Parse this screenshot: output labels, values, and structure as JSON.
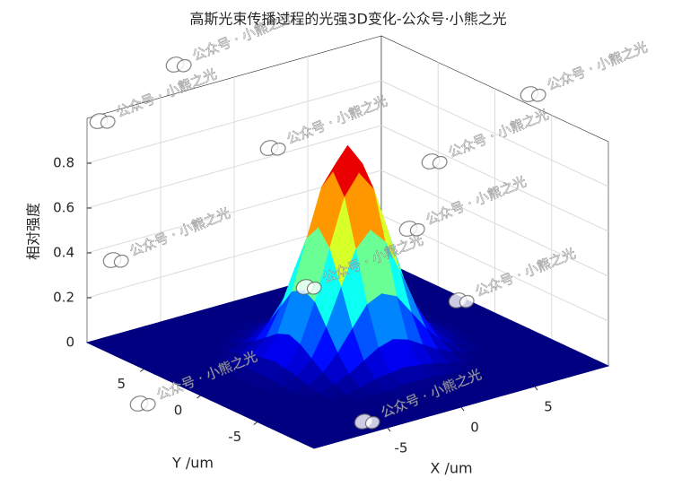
{
  "chart_data": {
    "type": "surface",
    "title": "高斯光束传播过程的光强3D变化-公众号·小熊之光",
    "xlabel": "X /um",
    "ylabel": "Y /um",
    "zlabel": "相对强度",
    "watermark": "公众号 · 小熊之光",
    "colormap": "jet",
    "grid": true,
    "xlim": [
      -10,
      10
    ],
    "ylim": [
      -10,
      10
    ],
    "zlim": [
      0,
      1
    ],
    "xticks": [
      -5,
      0,
      5
    ],
    "yticks": [
      -5,
      0,
      5
    ],
    "zticks": [
      0,
      0.2,
      0.4,
      0.6,
      0.8
    ],
    "x": [
      -10,
      -9,
      -8,
      -7,
      -6,
      -5,
      -4,
      -3,
      -2,
      -1,
      0,
      1,
      2,
      3,
      4,
      5,
      6,
      7,
      8,
      9,
      10
    ],
    "y": [
      -10,
      -9,
      -8,
      -7,
      -6,
      -5,
      -4,
      -3,
      -2,
      -1,
      0,
      1,
      2,
      3,
      4,
      5,
      6,
      7,
      8,
      9,
      10
    ],
    "z": [
      [
        0,
        0,
        0,
        0,
        0,
        0,
        0,
        0,
        0,
        0,
        0,
        0,
        0,
        0,
        0,
        0,
        0,
        0,
        0,
        0,
        0
      ],
      [
        0,
        0,
        0,
        0,
        0,
        0,
        0,
        0,
        0,
        0,
        0,
        0,
        0,
        0,
        0,
        0,
        0,
        0,
        0,
        0,
        0
      ],
      [
        0,
        0,
        0,
        0,
        0,
        0,
        0,
        0,
        0,
        0,
        0,
        0,
        0,
        0,
        0,
        0,
        0,
        0,
        0,
        0,
        0
      ],
      [
        0,
        0,
        0,
        0,
        0,
        0,
        0,
        0,
        0,
        0,
        0,
        0,
        0,
        0,
        0,
        0,
        0,
        0,
        0,
        0,
        0
      ],
      [
        0,
        0,
        0,
        0,
        0,
        0,
        0,
        0.01,
        0.01,
        0.02,
        0.02,
        0.02,
        0.01,
        0.01,
        0,
        0,
        0,
        0,
        0,
        0,
        0
      ],
      [
        0,
        0,
        0,
        0,
        0,
        0,
        0.01,
        0.02,
        0.04,
        0.05,
        0.06,
        0.05,
        0.04,
        0.02,
        0.01,
        0,
        0,
        0,
        0,
        0,
        0
      ],
      [
        0,
        0,
        0,
        0,
        0,
        0.01,
        0.03,
        0.06,
        0.1,
        0.14,
        0.16,
        0.14,
        0.1,
        0.06,
        0.03,
        0.01,
        0,
        0,
        0,
        0,
        0
      ],
      [
        0,
        0,
        0,
        0,
        0.01,
        0.02,
        0.06,
        0.13,
        0.22,
        0.31,
        0.34,
        0.31,
        0.22,
        0.13,
        0.06,
        0.02,
        0.01,
        0,
        0,
        0,
        0
      ],
      [
        0,
        0,
        0,
        0,
        0.01,
        0.04,
        0.1,
        0.22,
        0.38,
        0.53,
        0.6,
        0.53,
        0.38,
        0.22,
        0.1,
        0.04,
        0.01,
        0,
        0,
        0,
        0
      ],
      [
        0,
        0,
        0,
        0,
        0.02,
        0.05,
        0.14,
        0.31,
        0.53,
        0.74,
        0.83,
        0.74,
        0.53,
        0.31,
        0.14,
        0.05,
        0.02,
        0,
        0,
        0,
        0
      ],
      [
        0,
        0,
        0,
        0,
        0.02,
        0.06,
        0.16,
        0.34,
        0.6,
        0.83,
        0.93,
        0.83,
        0.6,
        0.34,
        0.16,
        0.06,
        0.02,
        0,
        0,
        0,
        0
      ],
      [
        0,
        0,
        0,
        0,
        0.02,
        0.05,
        0.14,
        0.31,
        0.53,
        0.74,
        0.83,
        0.74,
        0.53,
        0.31,
        0.14,
        0.05,
        0.02,
        0,
        0,
        0,
        0
      ],
      [
        0,
        0,
        0,
        0,
        0.01,
        0.04,
        0.1,
        0.22,
        0.38,
        0.53,
        0.6,
        0.53,
        0.38,
        0.22,
        0.1,
        0.04,
        0.01,
        0,
        0,
        0,
        0
      ],
      [
        0,
        0,
        0,
        0,
        0.01,
        0.02,
        0.06,
        0.13,
        0.22,
        0.31,
        0.34,
        0.31,
        0.22,
        0.13,
        0.06,
        0.02,
        0.01,
        0,
        0,
        0,
        0
      ],
      [
        0,
        0,
        0,
        0,
        0,
        0.01,
        0.03,
        0.06,
        0.1,
        0.14,
        0.16,
        0.14,
        0.1,
        0.06,
        0.03,
        0.01,
        0,
        0,
        0,
        0,
        0
      ],
      [
        0,
        0,
        0,
        0,
        0,
        0,
        0.01,
        0.02,
        0.04,
        0.05,
        0.06,
        0.05,
        0.04,
        0.02,
        0.01,
        0,
        0,
        0,
        0,
        0,
        0
      ],
      [
        0,
        0,
        0,
        0,
        0,
        0,
        0,
        0.01,
        0.01,
        0.02,
        0.02,
        0.02,
        0.01,
        0.01,
        0,
        0,
        0,
        0,
        0,
        0,
        0
      ],
      [
        0,
        0,
        0,
        0,
        0,
        0,
        0,
        0,
        0,
        0,
        0,
        0,
        0,
        0,
        0,
        0,
        0,
        0,
        0,
        0,
        0
      ],
      [
        0,
        0,
        0,
        0,
        0,
        0,
        0,
        0,
        0,
        0,
        0,
        0,
        0,
        0,
        0,
        0,
        0,
        0,
        0,
        0,
        0
      ],
      [
        0,
        0,
        0,
        0,
        0,
        0,
        0,
        0,
        0,
        0,
        0,
        0,
        0,
        0,
        0,
        0,
        0,
        0,
        0,
        0,
        0
      ],
      [
        0,
        0,
        0,
        0,
        0,
        0,
        0,
        0,
        0,
        0,
        0,
        0,
        0,
        0,
        0,
        0,
        0,
        0,
        0,
        0,
        0
      ]
    ]
  }
}
